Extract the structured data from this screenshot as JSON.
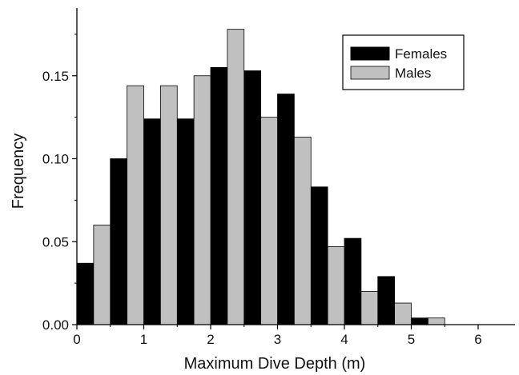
{
  "chart_data": {
    "type": "bar",
    "xlabel": "Maximum Dive Depth (m)",
    "ylabel": "Frequency",
    "xlim": [
      0,
      6.5
    ],
    "ylim": [
      0,
      0.19
    ],
    "x_ticks": [
      "0",
      "1",
      "2",
      "3",
      "4",
      "5",
      "6"
    ],
    "y_ticks": [
      "0.00",
      "0.05",
      "0.10",
      "0.15"
    ],
    "legend_position": "top-right",
    "bin_width": 0.25,
    "series": [
      {
        "name": "Females",
        "color": "#000000",
        "bins": [
          {
            "x0": 0.0,
            "value": 0.037
          },
          {
            "x0": 0.5,
            "value": 0.1
          },
          {
            "x0": 1.0,
            "value": 0.124
          },
          {
            "x0": 1.5,
            "value": 0.124
          },
          {
            "x0": 2.0,
            "value": 0.155
          },
          {
            "x0": 2.5,
            "value": 0.153
          },
          {
            "x0": 3.0,
            "value": 0.139
          },
          {
            "x0": 3.5,
            "value": 0.083
          },
          {
            "x0": 4.0,
            "value": 0.052
          },
          {
            "x0": 4.5,
            "value": 0.029
          },
          {
            "x0": 5.0,
            "value": 0.004
          }
        ]
      },
      {
        "name": "Males",
        "color": "#c0c0c0",
        "bins": [
          {
            "x0": 0.25,
            "value": 0.06
          },
          {
            "x0": 0.75,
            "value": 0.144
          },
          {
            "x0": 1.25,
            "value": 0.144
          },
          {
            "x0": 1.75,
            "value": 0.15
          },
          {
            "x0": 2.25,
            "value": 0.178
          },
          {
            "x0": 2.75,
            "value": 0.125
          },
          {
            "x0": 3.25,
            "value": 0.113
          },
          {
            "x0": 3.75,
            "value": 0.047
          },
          {
            "x0": 4.25,
            "value": 0.02
          },
          {
            "x0": 4.75,
            "value": 0.013
          },
          {
            "x0": 5.25,
            "value": 0.004
          }
        ]
      }
    ]
  }
}
